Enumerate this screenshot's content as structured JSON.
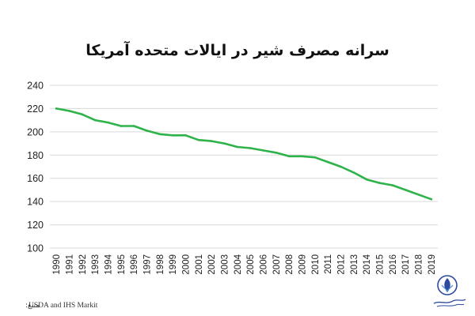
{
  "chart_data": {
    "type": "line",
    "title": "سرانه مصرف شیر در ایالات متحده آمریکا",
    "xlabel": "",
    "ylabel": "",
    "ylim": [
      100,
      240
    ],
    "yticks": [
      100,
      120,
      140,
      160,
      180,
      200,
      220,
      240
    ],
    "grid": "horizontal",
    "legend": "none",
    "x": [
      "1990",
      "1991",
      "1992",
      "1993",
      "1994",
      "1995",
      "1996",
      "1997",
      "1998",
      "1999",
      "2000",
      "2001",
      "2002",
      "2003",
      "2004",
      "2005",
      "2006",
      "2007",
      "2008",
      "2009",
      "2010",
      "2011",
      "2012",
      "2013",
      "2014",
      "2015",
      "2016",
      "2017",
      "2018",
      "2019"
    ],
    "series": [
      {
        "values": [
          220,
          218,
          215,
          210,
          208,
          205,
          205,
          201,
          198,
          197,
          197,
          193,
          192,
          190,
          187,
          186,
          184,
          182,
          179,
          179,
          178,
          174,
          170,
          165,
          159,
          156,
          154,
          150,
          146,
          142
        ],
        "color": "#2eb24a"
      }
    ]
  },
  "source": {
    "label": "منبع:",
    "text": "USDA and IHS Markit"
  },
  "colors": {
    "line": "#2eb24a",
    "grid": "#d9d9d9",
    "text": "#222222"
  },
  "logo": {
    "icon": "association-emblem-icon"
  }
}
